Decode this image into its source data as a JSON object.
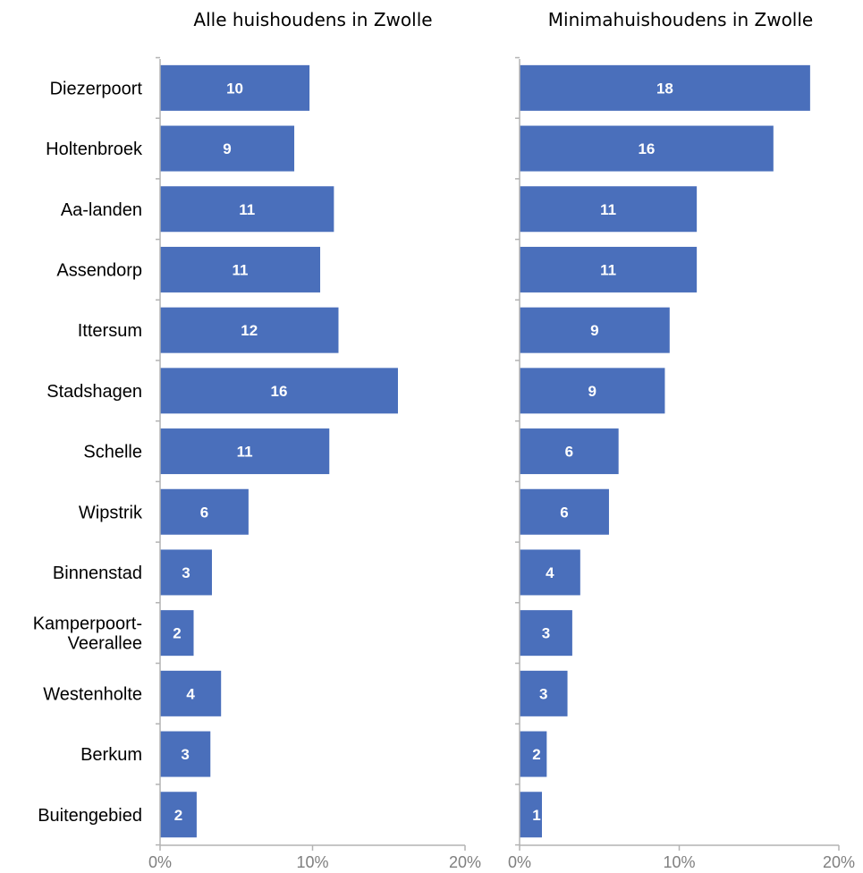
{
  "chart_data": {
    "type": "bar",
    "orientation": "horizontal",
    "categories": [
      "Diezerpoort",
      "Holtenbroek",
      "Aa-landen",
      "Assendorp",
      "Ittersum",
      "Stadshagen",
      "Schelle",
      "Wipstrik",
      "Binnenstad",
      "Kamperpoort-\nVeerallee",
      "Westenholte",
      "Berkum",
      "Buitengebied"
    ],
    "xlim": [
      0,
      20
    ],
    "xticks": [
      "0%",
      "10%",
      "20%"
    ],
    "panels": [
      {
        "title": "Alle huishoudens in Zwolle",
        "values": [
          9.8,
          8.8,
          11.4,
          10.5,
          11.7,
          15.6,
          11.1,
          5.8,
          3.4,
          2.2,
          4.0,
          3.3,
          2.4
        ],
        "labels": [
          "10",
          "9",
          "11",
          "11",
          "12",
          "16",
          "11",
          "6",
          "3",
          "2",
          "4",
          "3",
          "2"
        ]
      },
      {
        "title": "Minimahuishoudens in Zwolle",
        "values": [
          18.2,
          15.9,
          11.1,
          11.1,
          9.4,
          9.1,
          6.2,
          5.6,
          3.8,
          3.3,
          3.0,
          1.7,
          1.4
        ],
        "labels": [
          "18",
          "16",
          "11",
          "11",
          "9",
          "9",
          "6",
          "6",
          "4",
          "3",
          "3",
          "2",
          "1"
        ]
      }
    ],
    "colors": {
      "bar": "#4a6fbb",
      "value_label": "#ffffff",
      "tick_label": "#7f7f7f",
      "axis": "#b3b3b3"
    },
    "grid": false,
    "legend": "none"
  }
}
